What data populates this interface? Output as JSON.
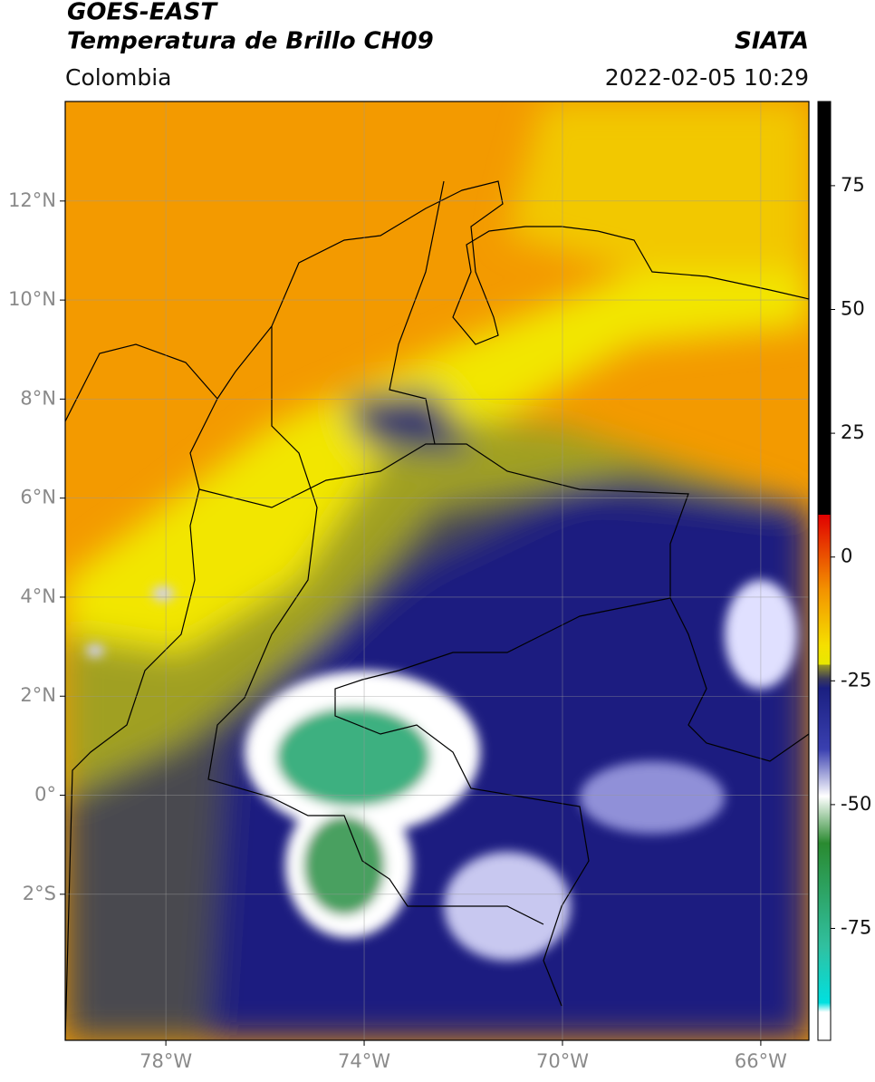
{
  "header": {
    "title": "GOES-EAST",
    "subtitle": "Temperatura de Brillo CH09",
    "region": "Colombia",
    "source": "SIATA",
    "datetime": "2022-02-05 10:29"
  },
  "map": {
    "xlim": [
      -80.03,
      -65.03
    ],
    "ylim": [
      -4.95,
      14.01
    ],
    "xticks": [
      {
        "value": -78,
        "label": "78°W"
      },
      {
        "value": -74,
        "label": "74°W"
      },
      {
        "value": -70,
        "label": "70°W"
      },
      {
        "value": -66,
        "label": "66°W"
      }
    ],
    "yticks": [
      {
        "value": 12,
        "label": "12°N"
      },
      {
        "value": 10,
        "label": "10°N"
      },
      {
        "value": 8,
        "label": "8°N"
      },
      {
        "value": 6,
        "label": "6°N"
      },
      {
        "value": 4,
        "label": "4°N"
      },
      {
        "value": 2,
        "label": "2°N"
      },
      {
        "value": 0,
        "label": "0°"
      },
      {
        "value": -2,
        "label": "2°S"
      }
    ],
    "grid": true
  },
  "colorbar": {
    "clim": [
      -97.6,
      92
    ],
    "ticks": [
      75,
      50,
      25,
      0,
      -25,
      -50,
      -75
    ]
  }
}
